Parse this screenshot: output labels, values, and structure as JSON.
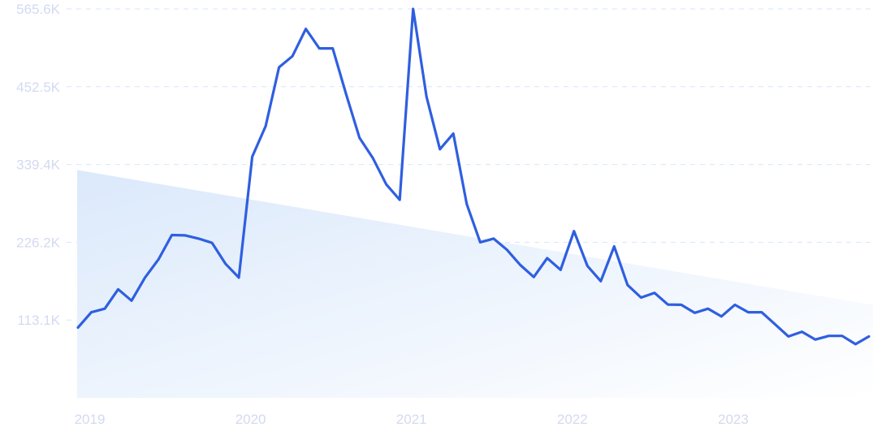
{
  "chart_data": {
    "type": "line",
    "title": "",
    "xlabel": "",
    "ylabel": "",
    "x": [
      "2018-12",
      "2019-01",
      "2019-02",
      "2019-03",
      "2019-04",
      "2019-05",
      "2019-06",
      "2019-07",
      "2019-08",
      "2019-09",
      "2019-10",
      "2019-11",
      "2019-12",
      "2020-01",
      "2020-02",
      "2020-03",
      "2020-04",
      "2020-05",
      "2020-06",
      "2020-07",
      "2020-08",
      "2020-09",
      "2020-10",
      "2020-11",
      "2020-12",
      "2021-01",
      "2021-02",
      "2021-03",
      "2021-04",
      "2021-05",
      "2021-06",
      "2021-07",
      "2021-08",
      "2021-09",
      "2021-10",
      "2021-11",
      "2021-12",
      "2022-01",
      "2022-02",
      "2022-03",
      "2022-04",
      "2022-05",
      "2022-06",
      "2022-07",
      "2022-08",
      "2022-09",
      "2022-10",
      "2022-11",
      "2022-12",
      "2023-01",
      "2023-02",
      "2023-03",
      "2023-04",
      "2023-05",
      "2023-06",
      "2023-07",
      "2023-08",
      "2023-09",
      "2023-10",
      "2023-11"
    ],
    "values": [
      102.2,
      124.4,
      129.7,
      157.9,
      141.4,
      174.9,
      201.2,
      236.7,
      236.3,
      231.5,
      225.4,
      195.1,
      174.9,
      350.7,
      395.1,
      480.7,
      496.9,
      536.5,
      508.2,
      508.2,
      441.6,
      378.1,
      348.6,
      310.3,
      288.0,
      565.6,
      437.9,
      361.6,
      384.2,
      282.0,
      226.2,
      231.5,
      215.3,
      193.1,
      175.7,
      203.2,
      186.2,
      242.4,
      191.9,
      169.7,
      220.2,
      164.0,
      145.8,
      152.7,
      135.7,
      135.3,
      123.6,
      129.7,
      118.4,
      135.3,
      124.4,
      124.4,
      107.0,
      89.3,
      96.1,
      84.8,
      90.1,
      90.1,
      78.0,
      89.3
    ],
    "value_unit": "K",
    "trend": {
      "start": 331.3,
      "end": 135.0
    },
    "ylim": [
      0,
      565.6
    ],
    "y_ticks": [
      {
        "value": 113.1,
        "label": "113.1K"
      },
      {
        "value": 226.2,
        "label": "226.2K"
      },
      {
        "value": 339.4,
        "label": "339.4K"
      },
      {
        "value": 452.5,
        "label": "452.5K"
      },
      {
        "value": 565.6,
        "label": "565.6K"
      }
    ],
    "x_ticks": [
      {
        "value": "2019-01",
        "label": "2019"
      },
      {
        "value": "2020-01",
        "label": "2020"
      },
      {
        "value": "2021-01",
        "label": "2021"
      },
      {
        "value": "2022-01",
        "label": "2022"
      },
      {
        "value": "2023-01",
        "label": "2023"
      }
    ],
    "grid": true,
    "colors": {
      "line": "#2f5fe0",
      "trend_fill": "#dbe9fb",
      "grid": "#d6e6fb",
      "tick_text": "#d3daf2"
    }
  }
}
